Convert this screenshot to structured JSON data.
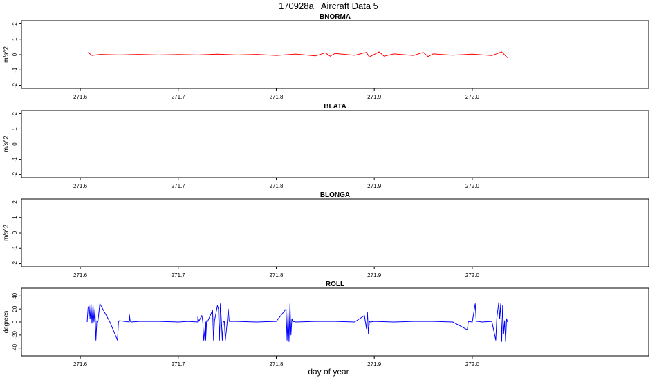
{
  "title": "170928a   Aircraft Data 5",
  "xlabel": "day of year",
  "chart_data": [
    {
      "type": "line",
      "title": "BNORMA",
      "ylabel": "m/s^2",
      "color": "#ff0000",
      "xlim": [
        271.54,
        272.18
      ],
      "ylim": [
        -2.2,
        2.2
      ],
      "xticks": [
        271.6,
        271.7,
        271.8,
        271.9,
        272.0
      ],
      "xtick_labels": [
        "271.6",
        "271.7",
        "271.8",
        "271.9",
        "272.0"
      ],
      "yticks": [
        -2,
        -1,
        0,
        1,
        2
      ],
      "ytick_labels": [
        "-2",
        "-1",
        "0",
        "1",
        "2"
      ],
      "series": [
        {
          "x": [
            271.608,
            271.612,
            271.62,
            271.64,
            271.66,
            271.68,
            271.7,
            271.72,
            271.74,
            271.76,
            271.78,
            271.8,
            271.82,
            271.84,
            271.85,
            271.855,
            271.86,
            271.88,
            271.892,
            271.895,
            271.905,
            271.91,
            271.92,
            271.94,
            271.95,
            271.955,
            271.96,
            271.98,
            272.0,
            272.02,
            272.03,
            272.036
          ],
          "y": [
            0.15,
            -0.05,
            0.02,
            -0.02,
            0.02,
            -0.02,
            0.01,
            -0.02,
            0.03,
            -0.02,
            0.02,
            -0.05,
            0.04,
            -0.08,
            0.12,
            -0.1,
            0.08,
            -0.04,
            0.15,
            -0.15,
            0.18,
            -0.1,
            0.05,
            -0.05,
            0.15,
            -0.12,
            0.05,
            -0.03,
            0.03,
            -0.06,
            0.18,
            -0.2
          ]
        }
      ]
    },
    {
      "type": "line",
      "title": "BLATA",
      "ylabel": "m/s^2",
      "color": "#ff0000",
      "xlim": [
        271.54,
        272.18
      ],
      "ylim": [
        -2.2,
        2.2
      ],
      "xticks": [
        271.6,
        271.7,
        271.8,
        271.9,
        272.0
      ],
      "xtick_labels": [
        "271.6",
        "271.7",
        "271.8",
        "271.9",
        "272.0"
      ],
      "yticks": [
        -2,
        -1,
        0,
        1,
        2
      ],
      "ytick_labels": [
        "-2",
        "-1",
        "0",
        "1",
        "2"
      ],
      "series": []
    },
    {
      "type": "line",
      "title": "BLONGA",
      "ylabel": "m/s^2",
      "color": "#ff0000",
      "xlim": [
        271.54,
        272.18
      ],
      "ylim": [
        -2.2,
        2.2
      ],
      "xticks": [
        271.6,
        271.7,
        271.8,
        271.9,
        272.0
      ],
      "xtick_labels": [
        "271.6",
        "271.7",
        "271.8",
        "271.9",
        "272.0"
      ],
      "yticks": [
        -2,
        -1,
        0,
        1,
        2
      ],
      "ytick_labels": [
        "-2",
        "-1",
        "0",
        "1",
        "2"
      ],
      "series": []
    },
    {
      "type": "line",
      "title": "ROLL",
      "ylabel": "degrees",
      "color": "#0000ff",
      "xlim": [
        271.54,
        272.18
      ],
      "ylim": [
        -52,
        52
      ],
      "xticks": [
        271.6,
        271.7,
        271.8,
        271.9,
        272.0
      ],
      "xtick_labels": [
        "271.6",
        "271.7",
        "271.8",
        "271.9",
        "272.0"
      ],
      "yticks": [
        -40,
        -20,
        0,
        20,
        40
      ],
      "ytick_labels": [
        "-40",
        "-20",
        "0",
        "20",
        "40"
      ],
      "series": [
        {
          "x": [
            271.607,
            271.608,
            271.609,
            271.61,
            271.611,
            271.612,
            271.613,
            271.614,
            271.615,
            271.616,
            271.617,
            271.618,
            271.62,
            271.63,
            271.638,
            271.639,
            271.64,
            271.65,
            271.65,
            271.651,
            271.652,
            271.66,
            271.68,
            271.7,
            271.71,
            271.72,
            271.72,
            271.721,
            271.724,
            271.725,
            271.726,
            271.728,
            271.728,
            271.729,
            271.73,
            271.735,
            271.736,
            271.737,
            271.74,
            271.741,
            271.742,
            271.743,
            271.744,
            271.745,
            271.746,
            271.747,
            271.748,
            271.75,
            271.751,
            271.752,
            271.76,
            271.78,
            271.8,
            271.81,
            271.811,
            271.812,
            271.813,
            271.814,
            271.815,
            271.816,
            271.817,
            271.818,
            271.82,
            271.84,
            271.86,
            271.88,
            271.89,
            271.892,
            271.893,
            271.894,
            271.895,
            271.896,
            271.9,
            271.92,
            271.94,
            271.96,
            271.98,
            271.995,
            271.996,
            272.0,
            272.003,
            272.004,
            272.006,
            272.01,
            272.02,
            272.024,
            272.025,
            272.027,
            272.028,
            272.029,
            272.03,
            272.031,
            272.032,
            272.033,
            272.034,
            272.035,
            272.036
          ],
          "y": [
            0,
            22,
            25,
            5,
            28,
            -2,
            26,
            0,
            20,
            -28,
            2,
            0,
            28,
            1,
            -28,
            0,
            2,
            0,
            12,
            1,
            0,
            1,
            1,
            0,
            1,
            0,
            8,
            1,
            10,
            1,
            -28,
            0,
            -28,
            2,
            1,
            18,
            -28,
            2,
            25,
            20,
            -28,
            28,
            2,
            -28,
            0,
            1,
            -28,
            0,
            20,
            1,
            1,
            0,
            1,
            20,
            -28,
            16,
            -30,
            28,
            -20,
            5,
            0,
            1,
            0,
            1,
            1,
            0,
            10,
            -10,
            15,
            -18,
            1,
            0,
            1,
            0,
            1,
            1,
            0,
            -12,
            1,
            0,
            28,
            1,
            1,
            0,
            1,
            -28,
            5,
            30,
            5,
            28,
            -30,
            25,
            -18,
            2,
            -30,
            5,
            0
          ]
        }
      ]
    }
  ]
}
